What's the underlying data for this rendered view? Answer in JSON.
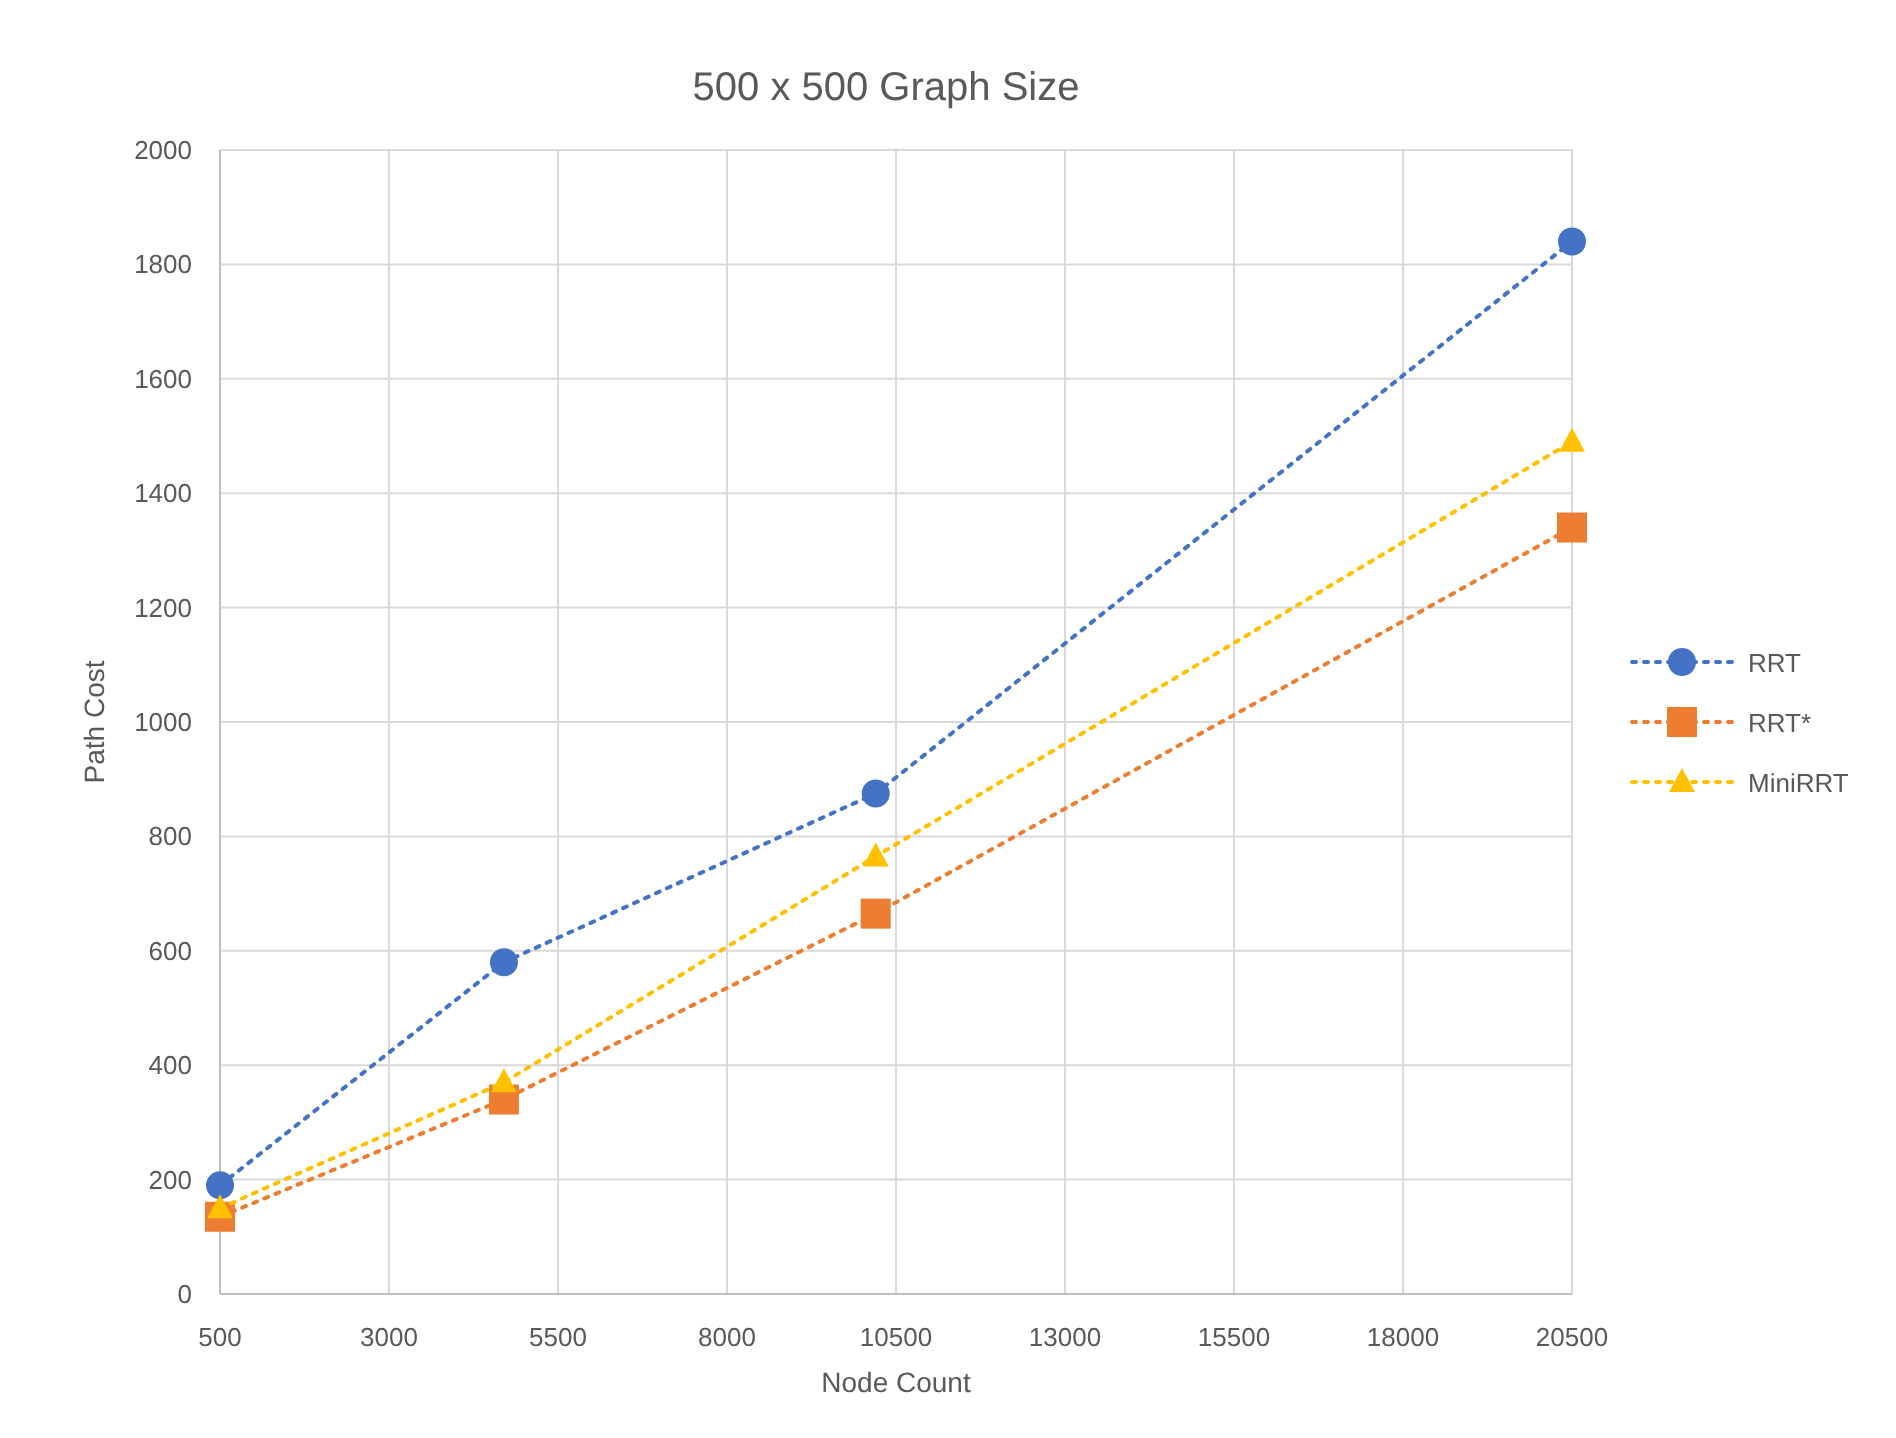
{
  "chart_data": {
    "type": "line",
    "title": "500 x 500 Graph Size",
    "xlabel": "Node Count",
    "ylabel": "Path Cost",
    "x": [
      500,
      4700,
      10200,
      20500
    ],
    "series": [
      {
        "name": "RRT",
        "color": "#4472c4",
        "marker": "circle",
        "values": [
          190,
          580,
          875,
          1840
        ]
      },
      {
        "name": "RRT*",
        "color": "#ed7d31",
        "marker": "square",
        "values": [
          135,
          340,
          665,
          1340
        ]
      },
      {
        "name": "MiniRRT",
        "color": "#ffc000",
        "marker": "triangle",
        "values": [
          150,
          370,
          765,
          1490
        ]
      }
    ],
    "xlim": [
      500,
      20500
    ],
    "xticks": [
      500,
      3000,
      5500,
      8000,
      10500,
      13000,
      15500,
      18000,
      20500
    ],
    "ylim": [
      0,
      2000
    ],
    "yticks": [
      0,
      200,
      400,
      600,
      800,
      1000,
      1200,
      1400,
      1600,
      1800,
      2000
    ],
    "grid": true,
    "legend": "right",
    "line_style": "dotted"
  }
}
